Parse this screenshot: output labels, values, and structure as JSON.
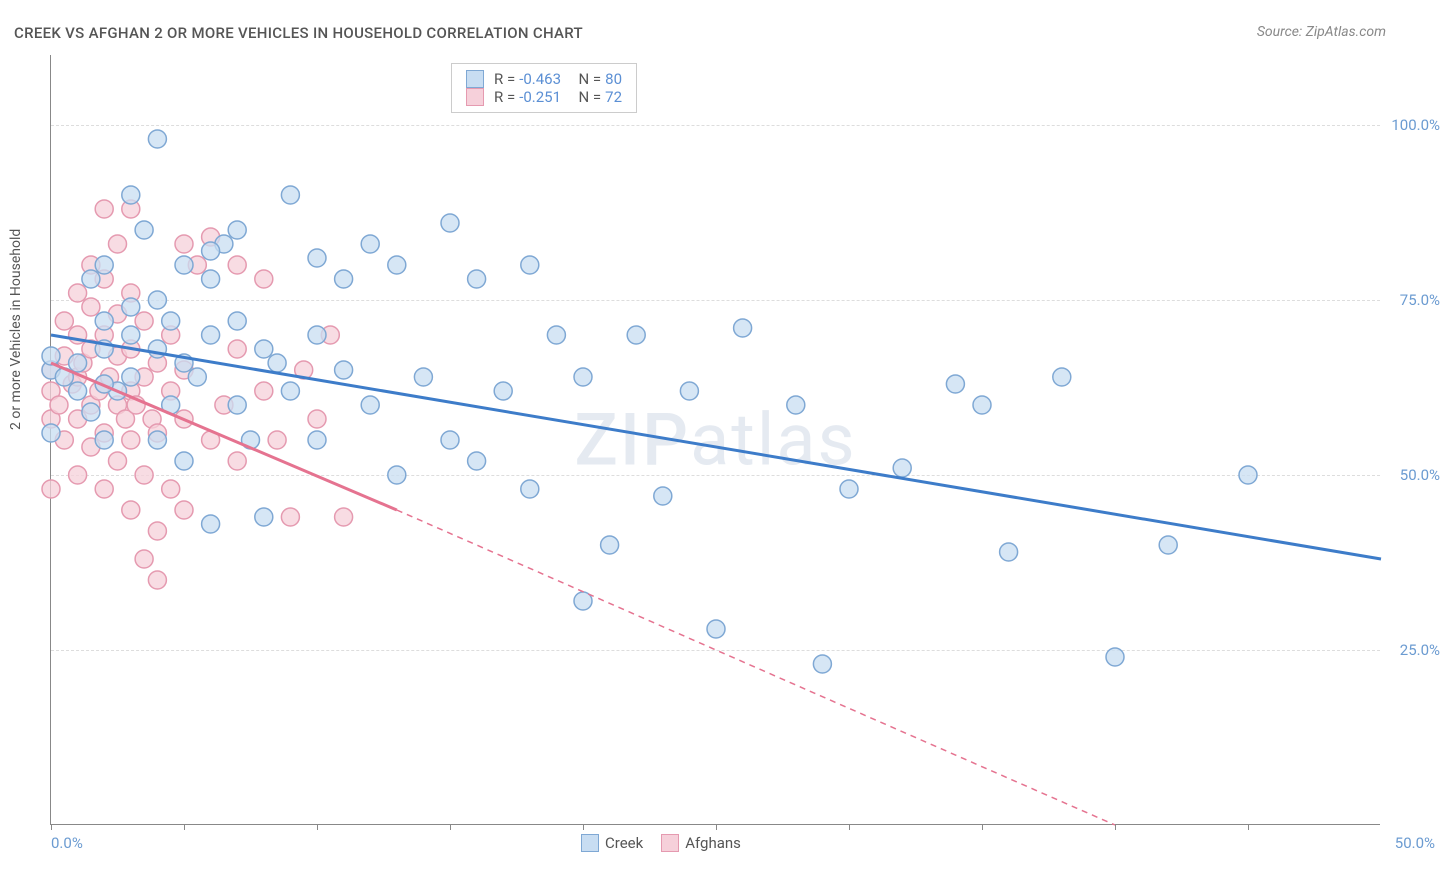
{
  "title": "CREEK VS AFGHAN 2 OR MORE VEHICLES IN HOUSEHOLD CORRELATION CHART",
  "source": "Source: ZipAtlas.com",
  "watermark": "ZIPatlas",
  "chart": {
    "type": "scatter",
    "ylabel": "2 or more Vehicles in Household",
    "xlim": [
      0,
      50
    ],
    "ylim": [
      0,
      110
    ],
    "xtick_positions": [
      0,
      5,
      10,
      15,
      20,
      25,
      30,
      35,
      40,
      45
    ],
    "xtick_labels": {
      "0": "0.0%",
      "50": "50.0%"
    },
    "ytick_positions": [
      25,
      50,
      75,
      100
    ],
    "ytick_labels": [
      "25.0%",
      "50.0%",
      "75.0%",
      "100.0%"
    ],
    "grid_color": "#dddddd",
    "background_color": "#ffffff",
    "axis_color": "#888888",
    "tick_label_color": "#6b9bd1",
    "series": [
      {
        "name": "Creek",
        "marker_fill": "#c8ddf2",
        "marker_stroke": "#7fa8d4",
        "marker_radius": 9,
        "line_color": "#3d7cc9",
        "line_width": 3,
        "R": "-0.463",
        "N": "80",
        "trend": {
          "x1": 0,
          "y1": 70,
          "x2": 50,
          "y2": 38
        },
        "points": [
          [
            0,
            56
          ],
          [
            0,
            65
          ],
          [
            0,
            67
          ],
          [
            0.5,
            64
          ],
          [
            1,
            62
          ],
          [
            1,
            66
          ],
          [
            1.5,
            59
          ],
          [
            1.5,
            78
          ],
          [
            2,
            55
          ],
          [
            2,
            68
          ],
          [
            2,
            72
          ],
          [
            2,
            80
          ],
          [
            2.5,
            62
          ],
          [
            3,
            64
          ],
          [
            3,
            70
          ],
          [
            3,
            74
          ],
          [
            3.5,
            85
          ],
          [
            4,
            55
          ],
          [
            4,
            68
          ],
          [
            4,
            98
          ],
          [
            4.5,
            60
          ],
          [
            4.5,
            72
          ],
          [
            5,
            52
          ],
          [
            5,
            66
          ],
          [
            5,
            80
          ],
          [
            5.5,
            64
          ],
          [
            6,
            43
          ],
          [
            6,
            70
          ],
          [
            6,
            78
          ],
          [
            6.5,
            83
          ],
          [
            7,
            60
          ],
          [
            7,
            72
          ],
          [
            7,
            85
          ],
          [
            7.5,
            55
          ],
          [
            8,
            44
          ],
          [
            8,
            68
          ],
          [
            8.5,
            66
          ],
          [
            9,
            62
          ],
          [
            9,
            90
          ],
          [
            10,
            55
          ],
          [
            10,
            70
          ],
          [
            10,
            81
          ],
          [
            11,
            65
          ],
          [
            11,
            78
          ],
          [
            12,
            60
          ],
          [
            12,
            83
          ],
          [
            13,
            50
          ],
          [
            13,
            80
          ],
          [
            14,
            64
          ],
          [
            15,
            55
          ],
          [
            15,
            86
          ],
          [
            16,
            52
          ],
          [
            16,
            78
          ],
          [
            17,
            62
          ],
          [
            18,
            80
          ],
          [
            18,
            48
          ],
          [
            19,
            70
          ],
          [
            20,
            64
          ],
          [
            20,
            32
          ],
          [
            21,
            40
          ],
          [
            22,
            70
          ],
          [
            23,
            47
          ],
          [
            24,
            62
          ],
          [
            25,
            28
          ],
          [
            26,
            71
          ],
          [
            28,
            60
          ],
          [
            29,
            23
          ],
          [
            30,
            48
          ],
          [
            32,
            51
          ],
          [
            34,
            63
          ],
          [
            35,
            60
          ],
          [
            36,
            39
          ],
          [
            38,
            64
          ],
          [
            40,
            24
          ],
          [
            42,
            40
          ],
          [
            45,
            50
          ],
          [
            6,
            82
          ],
          [
            3,
            90
          ],
          [
            4,
            75
          ],
          [
            2,
            63
          ]
        ]
      },
      {
        "name": "Afghans",
        "marker_fill": "#f6d0da",
        "marker_stroke": "#e59ab0",
        "marker_radius": 9,
        "line_color": "#e57390",
        "line_width": 3,
        "R": "-0.251",
        "N": "72",
        "trend_solid": {
          "x1": 0,
          "y1": 66,
          "x2": 13,
          "y2": 45
        },
        "trend_dashed": {
          "x1": 13,
          "y1": 45,
          "x2": 40,
          "y2": 0
        },
        "points": [
          [
            0,
            48
          ],
          [
            0,
            58
          ],
          [
            0,
            62
          ],
          [
            0,
            65
          ],
          [
            0.3,
            60
          ],
          [
            0.5,
            55
          ],
          [
            0.5,
            67
          ],
          [
            0.5,
            72
          ],
          [
            0.8,
            63
          ],
          [
            1,
            50
          ],
          [
            1,
            58
          ],
          [
            1,
            64
          ],
          [
            1,
            70
          ],
          [
            1,
            76
          ],
          [
            1.2,
            66
          ],
          [
            1.5,
            54
          ],
          [
            1.5,
            60
          ],
          [
            1.5,
            68
          ],
          [
            1.5,
            74
          ],
          [
            1.5,
            80
          ],
          [
            1.8,
            62
          ],
          [
            2,
            48
          ],
          [
            2,
            56
          ],
          [
            2,
            63
          ],
          [
            2,
            70
          ],
          [
            2,
            78
          ],
          [
            2,
            88
          ],
          [
            2.2,
            64
          ],
          [
            2.5,
            52
          ],
          [
            2.5,
            60
          ],
          [
            2.5,
            67
          ],
          [
            2.5,
            73
          ],
          [
            2.5,
            83
          ],
          [
            2.8,
            58
          ],
          [
            3,
            45
          ],
          [
            3,
            55
          ],
          [
            3,
            62
          ],
          [
            3,
            68
          ],
          [
            3,
            88
          ],
          [
            3.2,
            60
          ],
          [
            3.5,
            38
          ],
          [
            3.5,
            50
          ],
          [
            3.5,
            64
          ],
          [
            3.5,
            72
          ],
          [
            3.8,
            58
          ],
          [
            4,
            42
          ],
          [
            4,
            56
          ],
          [
            4,
            66
          ],
          [
            4,
            35
          ],
          [
            4.5,
            48
          ],
          [
            4.5,
            62
          ],
          [
            4.5,
            70
          ],
          [
            5,
            45
          ],
          [
            5,
            58
          ],
          [
            5,
            65
          ],
          [
            5.5,
            80
          ],
          [
            6,
            55
          ],
          [
            6,
            84
          ],
          [
            6.5,
            60
          ],
          [
            7,
            52
          ],
          [
            7,
            68
          ],
          [
            8,
            62
          ],
          [
            8,
            78
          ],
          [
            8.5,
            55
          ],
          [
            9,
            44
          ],
          [
            9.5,
            65
          ],
          [
            10,
            58
          ],
          [
            10.5,
            70
          ],
          [
            7,
            80
          ],
          [
            5,
            83
          ],
          [
            3,
            76
          ],
          [
            11,
            44
          ]
        ]
      }
    ]
  },
  "legend_bottom": [
    {
      "label": "Creek",
      "fill": "#c8ddf2",
      "stroke": "#7fa8d4"
    },
    {
      "label": "Afghans",
      "fill": "#f6d0da",
      "stroke": "#e59ab0"
    }
  ]
}
